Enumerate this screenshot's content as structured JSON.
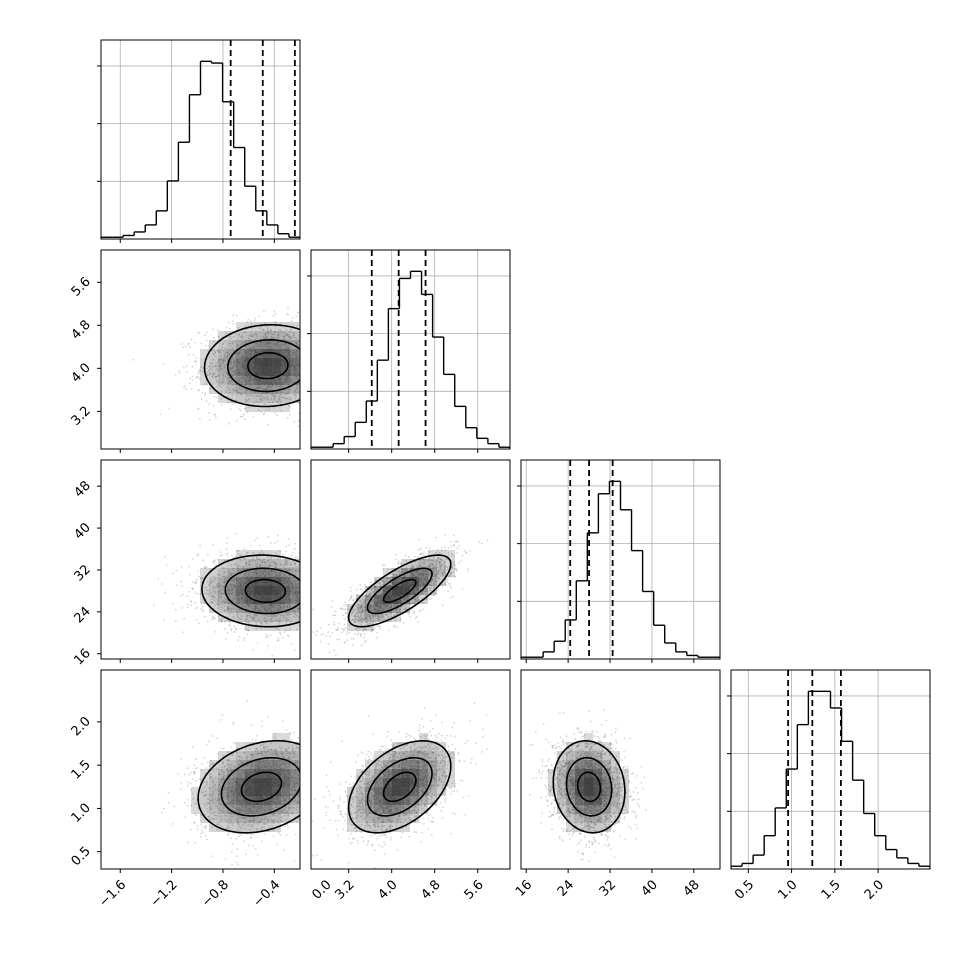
{
  "chart_data": {
    "type": "corner",
    "grid": true,
    "parameters": [
      {
        "id": "p0",
        "range": [
          -1.75,
          -0.2
        ],
        "ticks": [
          -1.6,
          -1.2,
          -0.8,
          -0.4,
          0.0
        ],
        "tick_labels": [
          "−1.6",
          "−1.2",
          "−0.8",
          "−0.4",
          "0.0"
        ],
        "quantiles": [
          -0.74,
          -0.49,
          -0.24
        ]
      },
      {
        "id": "p1",
        "range": [
          2.5,
          6.2
        ],
        "ticks": [
          3.2,
          4.0,
          4.8,
          5.6
        ],
        "tick_labels": [
          "3.2",
          "4.0",
          "4.8",
          "5.6"
        ],
        "quantiles": [
          3.63,
          4.13,
          4.63
        ]
      },
      {
        "id": "p2",
        "range": [
          15,
          53
        ],
        "ticks": [
          16,
          24,
          32,
          40,
          48
        ],
        "tick_labels": [
          "16",
          "24",
          "32",
          "40",
          "48"
        ],
        "quantiles": [
          24.4,
          28.0,
          32.5
        ]
      },
      {
        "id": "p3",
        "range": [
          0.3,
          2.6
        ],
        "ticks": [
          0.5,
          1.0,
          1.5,
          2.0
        ],
        "tick_labels": [
          "0.5",
          "1.0",
          "1.5",
          "2.0"
        ],
        "quantiles": [
          0.96,
          1.24,
          1.57
        ]
      }
    ],
    "histograms": [
      [
        1,
        1,
        2,
        4,
        8,
        16,
        33,
        55,
        82,
        101,
        100,
        78,
        52,
        30,
        16,
        8,
        3,
        1
      ],
      [
        1,
        1,
        3,
        7,
        15,
        27,
        50,
        79,
        96,
        100,
        87,
        63,
        42,
        24,
        12,
        6,
        3,
        1
      ],
      [
        1,
        1,
        4,
        10,
        22,
        44,
        71,
        93,
        100,
        84,
        61,
        38,
        19,
        9,
        4,
        2,
        1,
        1
      ],
      [
        1,
        2,
        5,
        12,
        22,
        36,
        52,
        64,
        64,
        58,
        46,
        32,
        20,
        12,
        7,
        4,
        2,
        1
      ]
    ],
    "joint": [
      {
        "x": 0,
        "y": 1,
        "center": [
          -0.45,
          4.05
        ],
        "spread": [
          0.26,
          0.4
        ],
        "corr": 0.05
      },
      {
        "x": 0,
        "y": 2,
        "center": [
          -0.47,
          28.0
        ],
        "spread": [
          0.26,
          3.6
        ],
        "corr": -0.05
      },
      {
        "x": 1,
        "y": 2,
        "center": [
          4.15,
          28.0
        ],
        "spread": [
          0.5,
          3.6
        ],
        "corr": 0.75
      },
      {
        "x": 0,
        "y": 3,
        "center": [
          -0.5,
          1.25
        ],
        "spread": [
          0.26,
          0.28
        ],
        "corr": 0.25
      },
      {
        "x": 1,
        "y": 3,
        "center": [
          4.15,
          1.25
        ],
        "spread": [
          0.5,
          0.28
        ],
        "corr": 0.45
      },
      {
        "x": 2,
        "y": 3,
        "center": [
          28.0,
          1.25
        ],
        "spread": [
          3.6,
          0.28
        ],
        "corr": -0.1
      }
    ],
    "colors": {
      "line": "#000000",
      "grid": "#b0b0b0",
      "scatter": "#8a8a8a",
      "fill": "#303030"
    }
  }
}
